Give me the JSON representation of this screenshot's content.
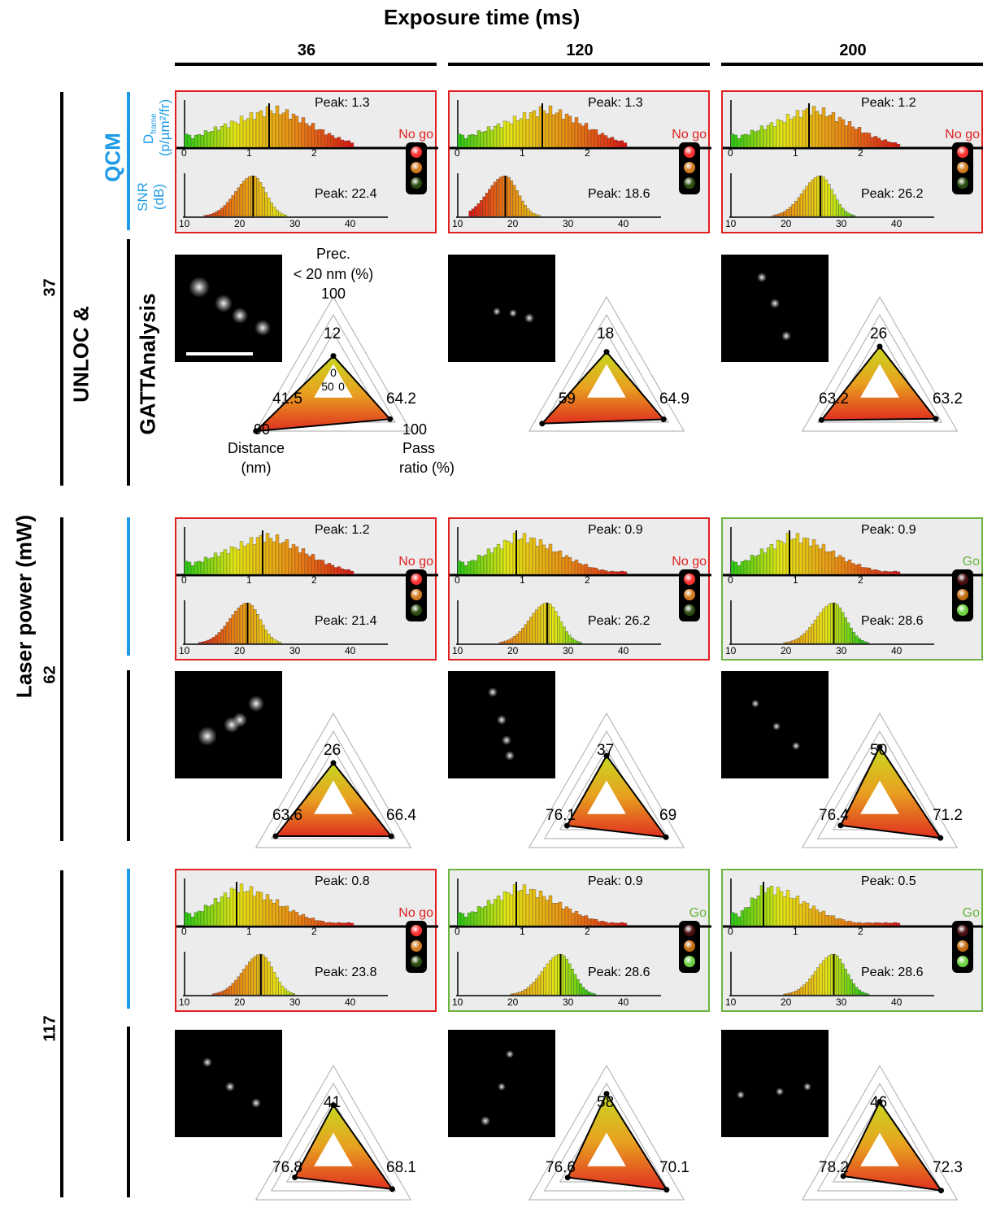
{
  "header": {
    "column_axis_title": "Exposure time (ms)",
    "row_axis_title": "Laser power (mW)",
    "columns": [
      "36",
      "120",
      "200"
    ],
    "rows": [
      "37",
      "62",
      "117"
    ]
  },
  "side_labels": {
    "qcm": "QCM",
    "unloc": "UNLOC &",
    "gatta": "GATTAnalysis",
    "dframe_label": "D",
    "dframe_sub": "frame",
    "dframe_unit": "(p/µm²/fr)",
    "snr_label": "SNR",
    "snr_unit": "(dB)"
  },
  "radar_axes": {
    "prec_title1": "Prec.",
    "prec_title2": "< 20 nm (%)",
    "prec_max": "100",
    "dist_max": "90",
    "dist_title1": "Distance",
    "dist_title2": "(nm)",
    "pass_max": "100",
    "pass_title1": "Pass",
    "pass_title2": "ratio (%)",
    "prec_min": "0",
    "center_left": "50",
    "center_right": "0"
  },
  "histogram_ticks": {
    "dframe": [
      "0",
      "1",
      "2"
    ],
    "snr": [
      "10",
      "20",
      "30",
      "40"
    ]
  },
  "colors": {
    "nogo": "#e02020",
    "go": "#6cb33f",
    "qcm_blue": "#1e9be8",
    "panel_bg": "#ececec"
  },
  "chart_data": [
    {
      "type": "bar",
      "laser_power": "37",
      "exposure": "36",
      "dframe_peak": "Peak: 1.3",
      "dframe_peak_value": 1.3,
      "snr_peak": "Peak: 22.4",
      "snr_peak_value": 22.4,
      "decision": "No go",
      "prec": 12,
      "distance": 41.5,
      "pass_ratio": 64.2,
      "prec_label": "12",
      "distance_label": "41.5",
      "pass_label": "64.2"
    },
    {
      "type": "bar",
      "laser_power": "37",
      "exposure": "120",
      "dframe_peak": "Peak: 1.3",
      "dframe_peak_value": 1.3,
      "snr_peak": "Peak: 18.6",
      "snr_peak_value": 18.6,
      "decision": "No go",
      "prec": 18,
      "distance": 59,
      "pass_ratio": 64.9,
      "prec_label": "18",
      "distance_label": "59",
      "pass_label": "64.9"
    },
    {
      "type": "bar",
      "laser_power": "37",
      "exposure": "200",
      "dframe_peak": "Peak: 1.2",
      "dframe_peak_value": 1.2,
      "snr_peak": "Peak: 26.2",
      "snr_peak_value": 26.2,
      "decision": "No go",
      "prec": 26,
      "distance": 63.2,
      "pass_ratio": 63.2,
      "prec_label": "26",
      "distance_label": "63.2",
      "pass_label": "63.2"
    },
    {
      "type": "bar",
      "laser_power": "62",
      "exposure": "36",
      "dframe_peak": "Peak: 1.2",
      "dframe_peak_value": 1.2,
      "snr_peak": "Peak: 21.4",
      "snr_peak_value": 21.4,
      "decision": "No go",
      "prec": 26,
      "distance": 63.6,
      "pass_ratio": 66.4,
      "prec_label": "26",
      "distance_label": "63.6",
      "pass_label": "66.4"
    },
    {
      "type": "bar",
      "laser_power": "62",
      "exposure": "120",
      "dframe_peak": "Peak: 0.9",
      "dframe_peak_value": 0.9,
      "snr_peak": "Peak: 26.2",
      "snr_peak_value": 26.2,
      "decision": "No go",
      "prec": 37,
      "distance": 76.1,
      "pass_ratio": 69,
      "prec_label": "37",
      "distance_label": "76.1",
      "pass_label": "69"
    },
    {
      "type": "bar",
      "laser_power": "62",
      "exposure": "200",
      "dframe_peak": "Peak: 0.9",
      "dframe_peak_value": 0.9,
      "snr_peak": "Peak: 28.6",
      "snr_peak_value": 28.6,
      "decision": "Go",
      "prec": 50,
      "distance": 76.4,
      "pass_ratio": 71.2,
      "prec_label": "50",
      "distance_label": "76.4",
      "pass_label": "71.2"
    },
    {
      "type": "bar",
      "laser_power": "117",
      "exposure": "36",
      "dframe_peak": "Peak: 0.8",
      "dframe_peak_value": 0.8,
      "snr_peak": "Peak: 23.8",
      "snr_peak_value": 23.8,
      "decision": "No go",
      "prec": 41,
      "distance": 76.8,
      "pass_ratio": 68.1,
      "prec_label": "41",
      "distance_label": "76.8",
      "pass_label": "68.1"
    },
    {
      "type": "bar",
      "laser_power": "117",
      "exposure": "120",
      "dframe_peak": "Peak: 0.9",
      "dframe_peak_value": 0.9,
      "snr_peak": "Peak: 28.6",
      "snr_peak_value": 28.6,
      "decision": "Go",
      "prec": 58,
      "distance": 76.6,
      "pass_ratio": 70.1,
      "prec_label": "58",
      "distance_label": "76.6",
      "pass_label": "70.1"
    },
    {
      "type": "bar",
      "laser_power": "117",
      "exposure": "200",
      "dframe_peak": "Peak: 0.5",
      "dframe_peak_value": 0.5,
      "snr_peak": "Peak: 28.6",
      "snr_peak_value": 28.6,
      "decision": "Go",
      "prec": 46,
      "distance": 78.2,
      "pass_ratio": 72.3,
      "prec_label": "46",
      "distance_label": "78.2",
      "pass_label": "72.3"
    }
  ]
}
